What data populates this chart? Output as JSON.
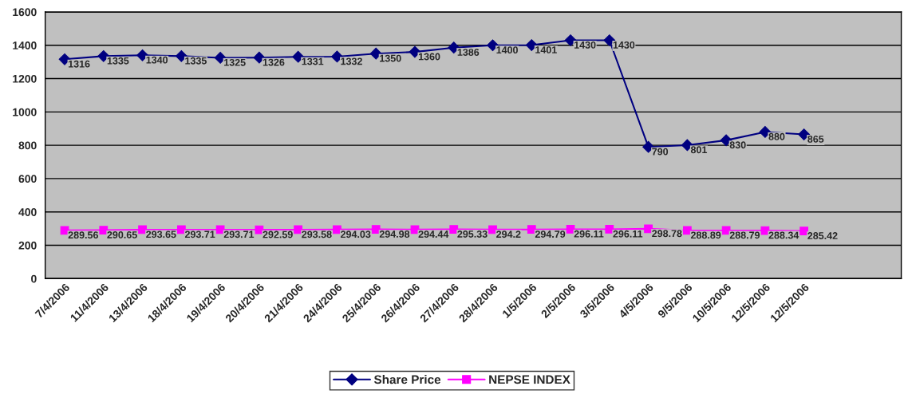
{
  "chart_data": {
    "type": "line",
    "categories": [
      "7/4/2006",
      "11/4/2006",
      "13/4/2006",
      "18/4/2006",
      "19/4/2006",
      "20/4/2006",
      "21/4/2006",
      "24/4/2006",
      "25/4/2006",
      "26/4/2006",
      "27/4/2006",
      "28/4/2006",
      "1/5/2006",
      "2/5/2006",
      "3/5/2006",
      "4/5/2006",
      "9/5/2006",
      "10/5/2006",
      "12/5/2006",
      "12/5/2006",
      null,
      null
    ],
    "series": [
      {
        "name": "Share Price",
        "color": "#000080",
        "marker": "diamond",
        "values": [
          1316,
          1335,
          1340,
          1335,
          1325,
          1326,
          1331,
          1332,
          1350,
          1360,
          1386,
          1400,
          1401,
          1430,
          1430,
          790,
          801,
          830,
          880,
          865,
          null,
          null
        ]
      },
      {
        "name": "NEPSE INDEX",
        "color": "#ff00ff",
        "marker": "square",
        "values": [
          289.56,
          290.65,
          293.65,
          293.71,
          293.71,
          292.59,
          293.58,
          294.03,
          294.98,
          294.44,
          295.33,
          294.2,
          294.79,
          296.11,
          296.11,
          298.78,
          288.89,
          288.79,
          288.34,
          285.42,
          null,
          null
        ]
      }
    ],
    "ylim": [
      0,
      1600
    ],
    "yticks": [
      0,
      200,
      400,
      600,
      800,
      1000,
      1200,
      1400,
      1600
    ],
    "grid": "y",
    "legend": "bottom",
    "data_labels": true
  }
}
